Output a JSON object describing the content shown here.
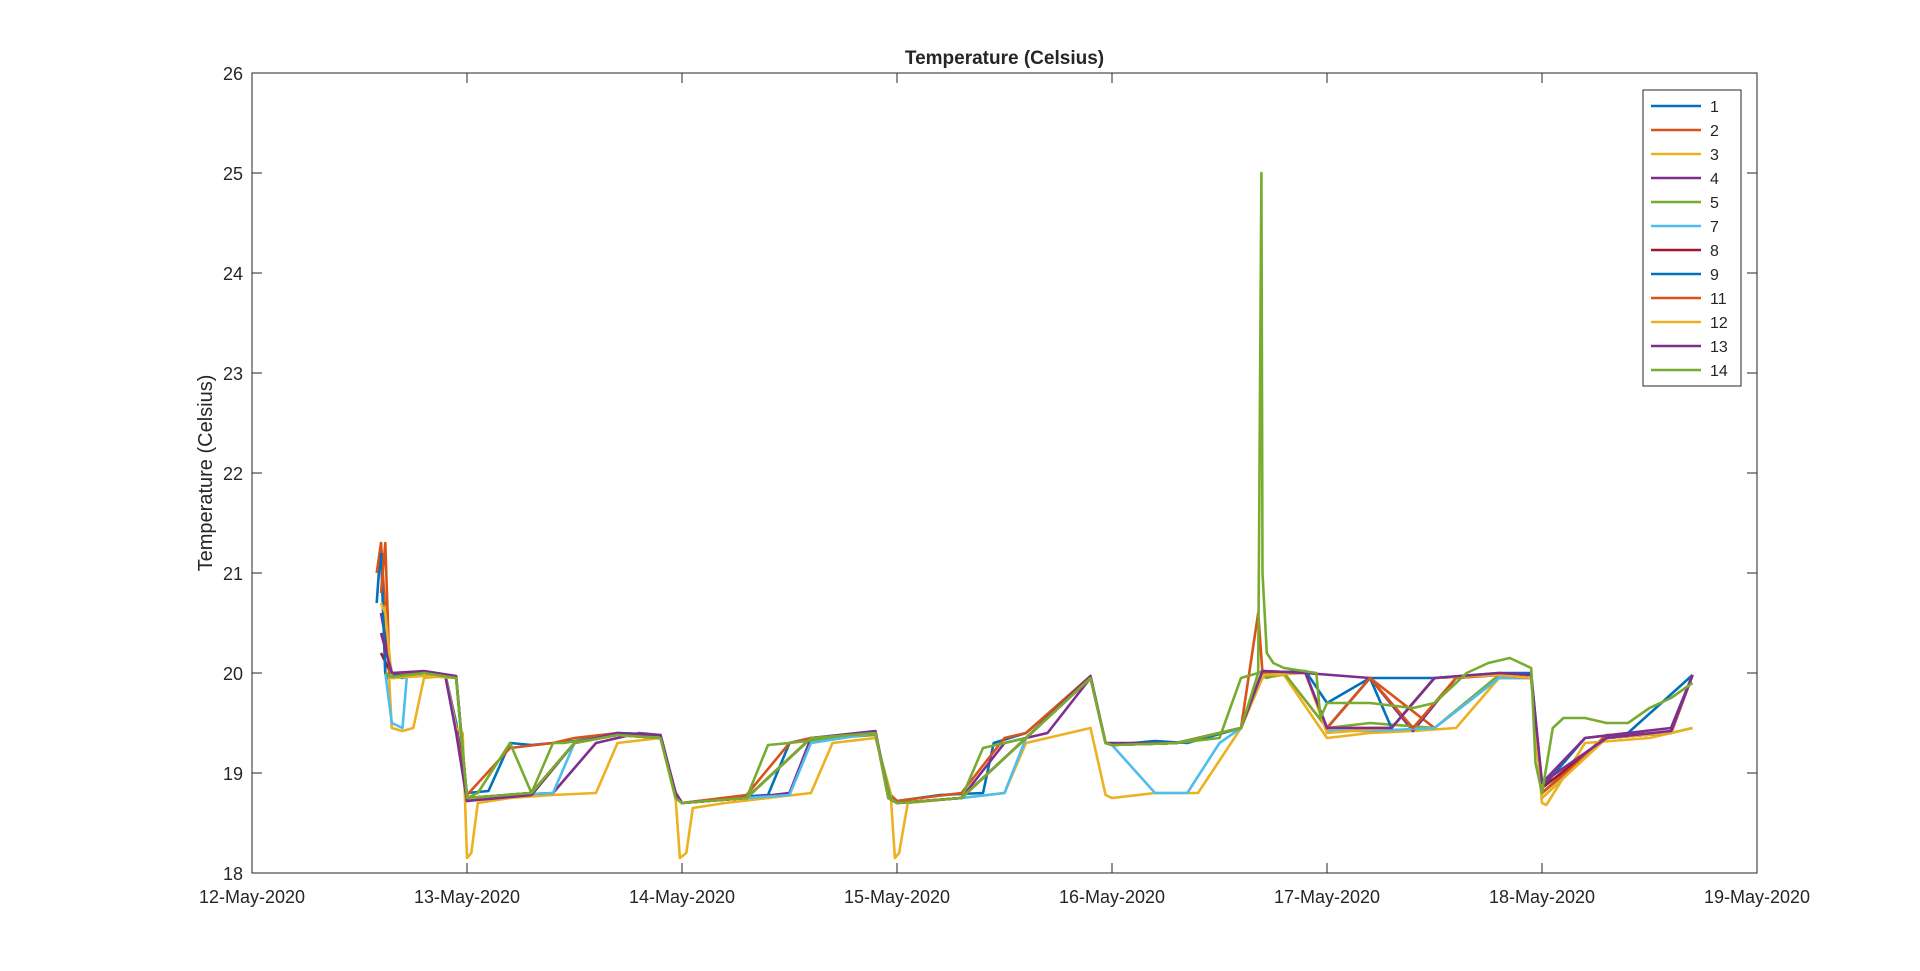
{
  "chart_data": {
    "type": "line",
    "title": "Temperature (Celsius)",
    "xlabel": "",
    "ylabel": "Temperature (Celsius)",
    "xlim": [
      "2020-05-12",
      "2020-05-19"
    ],
    "ylim": [
      18,
      26
    ],
    "xticks": [
      "12-May-2020",
      "13-May-2020",
      "14-May-2020",
      "15-May-2020",
      "16-May-2020",
      "17-May-2020",
      "18-May-2020",
      "19-May-2020"
    ],
    "yticks": [
      18,
      19,
      20,
      21,
      22,
      23,
      24,
      25,
      26
    ],
    "grid": false,
    "legend_position": "top-right",
    "series": [
      {
        "name": "1",
        "color": "#0072BD",
        "x_days": [
          12.58,
          12.6,
          12.62,
          12.63,
          12.65,
          12.7,
          12.8,
          12.9,
          12.95,
          13.0,
          13.1,
          13.2,
          13.3,
          13.5,
          13.7,
          13.9,
          13.97,
          14.0,
          14.2,
          14.4,
          14.5,
          14.6,
          14.9,
          14.96,
          15.0,
          15.2,
          15.4,
          15.45,
          15.6,
          15.9,
          15.97,
          16.0,
          16.2,
          16.35,
          16.6,
          16.7,
          16.9,
          17.0,
          17.2,
          17.5,
          17.8,
          17.95,
          18.0,
          18.2,
          18.4,
          18.7
        ],
        "y": [
          20.7,
          21.3,
          20.0,
          19.95,
          19.97,
          19.95,
          20.0,
          19.98,
          19.5,
          18.8,
          18.82,
          19.3,
          19.28,
          19.32,
          19.4,
          19.38,
          18.75,
          18.7,
          18.75,
          18.78,
          19.3,
          19.35,
          19.4,
          18.8,
          18.72,
          18.78,
          18.8,
          19.3,
          19.4,
          19.96,
          19.3,
          19.28,
          19.32,
          19.3,
          19.45,
          20.0,
          20.02,
          19.7,
          19.95,
          19.95,
          20.0,
          20.0,
          18.85,
          19.35,
          19.4,
          19.98
        ]
      },
      {
        "name": "2",
        "color": "#D95319",
        "x_days": [
          12.58,
          12.6,
          12.62,
          12.64,
          12.66,
          12.7,
          12.8,
          12.9,
          12.95,
          13.0,
          13.2,
          13.4,
          13.5,
          13.7,
          13.9,
          13.97,
          14.0,
          14.3,
          14.5,
          14.6,
          14.9,
          14.96,
          15.0,
          15.3,
          15.5,
          15.6,
          15.9,
          15.97,
          16.0,
          16.3,
          16.6,
          16.68,
          16.7,
          16.8,
          17.0,
          17.2,
          17.5,
          17.8,
          17.95,
          18.0,
          18.3,
          18.6,
          18.7
        ],
        "y": [
          21.0,
          21.3,
          20.6,
          19.98,
          19.95,
          19.96,
          20.0,
          19.96,
          19.45,
          18.78,
          19.25,
          19.3,
          19.35,
          19.4,
          19.35,
          18.8,
          18.7,
          18.78,
          19.3,
          19.35,
          19.4,
          18.8,
          18.72,
          18.8,
          19.35,
          19.4,
          19.97,
          19.3,
          19.28,
          19.3,
          19.45,
          20.6,
          20.0,
          20.0,
          19.45,
          19.95,
          19.45,
          19.95,
          19.95,
          18.8,
          19.38,
          19.4,
          19.98
        ]
      },
      {
        "name": "3",
        "color": "#EDB120",
        "x_days": [
          12.6,
          12.62,
          12.65,
          12.7,
          12.75,
          12.8,
          12.9,
          12.95,
          12.98,
          13.0,
          13.02,
          13.05,
          13.2,
          13.4,
          13.6,
          13.7,
          13.9,
          13.97,
          13.99,
          14.02,
          14.05,
          14.2,
          14.4,
          14.6,
          14.7,
          14.9,
          14.97,
          14.99,
          15.01,
          15.05,
          15.3,
          15.5,
          15.6,
          15.8,
          15.9,
          15.97,
          16.0,
          16.2,
          16.4,
          16.6,
          16.7,
          16.8,
          17.0,
          17.2,
          17.4,
          17.6,
          17.8,
          17.95,
          18.0,
          18.02,
          18.2,
          18.5,
          18.7
        ],
        "y": [
          20.7,
          20.65,
          19.45,
          19.42,
          19.45,
          19.95,
          19.97,
          19.45,
          19.4,
          18.15,
          18.2,
          18.7,
          18.75,
          18.78,
          18.8,
          19.3,
          19.35,
          18.75,
          18.15,
          18.2,
          18.65,
          18.7,
          18.75,
          18.8,
          19.3,
          19.35,
          18.8,
          18.15,
          18.2,
          18.7,
          18.75,
          18.8,
          19.3,
          19.4,
          19.45,
          18.78,
          18.75,
          18.8,
          18.8,
          19.45,
          19.95,
          19.98,
          19.35,
          19.4,
          19.42,
          19.45,
          19.95,
          19.95,
          18.7,
          18.68,
          19.3,
          19.35,
          19.45
        ]
      },
      {
        "name": "4",
        "color": "#7E2F8E",
        "x_days": [
          12.6,
          12.65,
          12.7,
          12.8,
          12.9,
          12.95,
          13.0,
          13.2,
          13.4,
          13.6,
          13.7,
          13.8,
          13.9,
          13.97,
          14.0,
          14.3,
          14.5,
          14.6,
          14.9,
          14.96,
          15.0,
          15.3,
          15.5,
          15.7,
          15.9,
          15.97,
          16.0,
          16.3,
          16.6,
          16.7,
          16.9,
          17.2,
          17.4,
          17.6,
          17.8,
          17.95,
          18.0,
          18.2,
          18.4,
          18.6,
          18.7
        ],
        "y": [
          20.6,
          20.0,
          19.98,
          20.0,
          19.96,
          19.4,
          18.72,
          18.78,
          18.8,
          19.3,
          19.35,
          19.4,
          19.38,
          18.8,
          18.7,
          18.75,
          18.8,
          19.35,
          19.4,
          18.75,
          18.7,
          18.75,
          19.3,
          19.4,
          19.95,
          19.3,
          19.28,
          19.3,
          19.45,
          20.02,
          20.0,
          19.95,
          19.42,
          19.95,
          19.98,
          19.95,
          18.9,
          19.35,
          19.4,
          19.45,
          19.98
        ]
      },
      {
        "name": "5",
        "color": "#77AC30",
        "x_days": [
          12.62,
          12.65,
          12.8,
          12.95,
          13.0,
          13.05,
          13.2,
          13.3,
          13.4,
          13.45,
          13.6,
          13.7,
          13.9,
          13.97,
          14.0,
          14.3,
          14.4,
          14.5,
          14.7,
          14.9,
          14.97,
          15.0,
          15.3,
          15.4,
          15.6,
          15.9,
          15.97,
          16.0,
          16.3,
          16.5,
          16.6,
          16.68,
          16.7,
          16.72,
          16.8,
          17.0,
          17.2,
          17.5,
          17.8,
          17.95,
          18.0,
          18.3,
          18.6,
          18.7
        ],
        "y": [
          20.0,
          19.95,
          20.0,
          19.95,
          18.75,
          18.8,
          19.3,
          18.8,
          19.3,
          19.3,
          19.35,
          19.38,
          19.35,
          18.75,
          18.7,
          18.75,
          19.28,
          19.3,
          19.35,
          19.38,
          18.75,
          18.7,
          18.75,
          19.25,
          19.35,
          19.95,
          19.3,
          19.28,
          19.3,
          19.35,
          19.95,
          20.0,
          20.02,
          19.95,
          20.0,
          19.45,
          19.5,
          19.45,
          19.98,
          19.95,
          18.75,
          19.35,
          19.4,
          19.98
        ]
      },
      {
        "name": "7",
        "color": "#4DBEEE",
        "x_days": [
          12.62,
          12.65,
          12.7,
          12.72,
          12.8,
          12.95,
          13.0,
          13.2,
          13.4,
          13.5,
          13.6,
          13.7,
          13.9,
          13.97,
          14.0,
          14.3,
          14.5,
          14.6,
          14.9,
          14.96,
          15.0,
          15.3,
          15.5,
          15.6,
          15.9,
          15.97,
          16.0,
          16.2,
          16.35,
          16.5,
          16.6,
          16.7,
          16.9,
          17.0,
          17.2,
          17.5,
          17.8,
          17.95,
          18.0,
          18.3,
          18.6,
          18.7
        ],
        "y": [
          20.0,
          19.5,
          19.45,
          19.96,
          20.0,
          19.95,
          18.75,
          18.78,
          18.8,
          19.3,
          19.35,
          19.4,
          19.38,
          18.75,
          18.7,
          18.75,
          18.78,
          19.3,
          19.4,
          18.75,
          18.7,
          18.75,
          18.8,
          19.35,
          19.95,
          19.3,
          19.28,
          18.8,
          18.8,
          19.3,
          19.45,
          19.98,
          20.0,
          19.42,
          19.42,
          19.45,
          19.95,
          19.95,
          18.8,
          19.35,
          19.4,
          19.45
        ]
      },
      {
        "name": "8",
        "color": "#A2142F",
        "x_days": [
          12.6,
          12.65,
          12.8,
          12.95,
          13.0,
          13.3,
          13.5,
          13.7,
          13.9,
          13.97,
          14.0,
          14.3,
          14.6,
          14.9,
          14.96,
          15.0,
          15.3,
          15.6,
          15.9,
          15.97,
          16.0,
          16.3,
          16.6,
          16.7,
          16.9,
          17.0,
          17.3,
          17.5,
          17.8,
          17.95,
          18.0,
          18.3,
          18.6,
          18.7
        ],
        "y": [
          20.2,
          19.98,
          20.0,
          19.95,
          18.75,
          18.8,
          19.3,
          19.38,
          19.35,
          18.8,
          18.7,
          18.75,
          19.35,
          19.4,
          18.75,
          18.7,
          18.75,
          19.35,
          19.95,
          19.3,
          19.28,
          19.3,
          19.45,
          20.0,
          20.0,
          19.45,
          19.45,
          19.95,
          19.98,
          19.95,
          18.85,
          19.35,
          19.4,
          19.98
        ]
      },
      {
        "name": "9",
        "color": "#0072BD",
        "x_days": [
          12.6,
          12.62,
          12.65,
          12.8,
          12.95,
          13.0,
          13.3,
          13.5,
          13.7,
          13.9,
          13.97,
          14.0,
          14.3,
          14.6,
          14.9,
          14.96,
          15.0,
          15.3,
          15.6,
          15.9,
          15.97,
          16.0,
          16.3,
          16.6,
          16.7,
          16.9,
          17.0,
          17.2,
          17.3,
          17.5,
          17.8,
          17.95,
          18.0,
          18.3,
          18.6,
          18.7
        ],
        "y": [
          21.2,
          20.0,
          19.97,
          20.0,
          19.95,
          18.75,
          18.8,
          19.3,
          19.38,
          19.35,
          18.8,
          18.7,
          18.75,
          19.35,
          19.4,
          18.75,
          18.7,
          18.75,
          19.35,
          19.95,
          19.3,
          19.28,
          19.3,
          19.45,
          20.0,
          20.0,
          19.45,
          19.95,
          19.45,
          19.95,
          19.98,
          19.95,
          18.8,
          19.35,
          19.4,
          19.98
        ]
      },
      {
        "name": "11",
        "color": "#D95319",
        "x_days": [
          12.6,
          12.62,
          12.64,
          12.8,
          12.95,
          13.0,
          13.3,
          13.5,
          13.7,
          13.9,
          13.97,
          14.0,
          14.3,
          14.6,
          14.9,
          14.96,
          15.0,
          15.3,
          15.6,
          15.9,
          15.97,
          16.0,
          16.3,
          16.6,
          16.7,
          16.9,
          17.0,
          17.2,
          17.4,
          17.6,
          17.8,
          17.95,
          18.0,
          18.3,
          18.6,
          18.7
        ],
        "y": [
          20.8,
          21.3,
          20.0,
          20.0,
          19.95,
          18.75,
          18.8,
          19.3,
          19.38,
          19.35,
          18.8,
          18.7,
          18.75,
          19.35,
          19.4,
          18.75,
          18.7,
          18.75,
          19.35,
          19.95,
          19.3,
          19.28,
          19.3,
          19.45,
          20.0,
          20.0,
          19.45,
          19.95,
          19.45,
          19.95,
          19.98,
          19.95,
          18.8,
          19.35,
          19.4,
          19.98
        ]
      },
      {
        "name": "12",
        "color": "#EDB120",
        "x_days": [
          12.6,
          12.62,
          12.65,
          12.8,
          12.95,
          13.0,
          13.3,
          13.5,
          13.7,
          13.9,
          13.97,
          14.0,
          14.3,
          14.6,
          14.9,
          14.96,
          15.0,
          15.3,
          15.6,
          15.9,
          15.97,
          16.0,
          16.3,
          16.6,
          16.7,
          16.9,
          17.0,
          17.3,
          17.5,
          17.8,
          17.95,
          18.0,
          18.3,
          18.6,
          18.7
        ],
        "y": [
          20.7,
          20.6,
          19.95,
          19.97,
          19.95,
          18.75,
          18.78,
          19.3,
          19.38,
          19.35,
          18.75,
          18.7,
          18.75,
          19.35,
          19.4,
          18.75,
          18.7,
          18.75,
          19.35,
          19.95,
          19.3,
          19.28,
          19.3,
          19.45,
          19.98,
          20.0,
          19.4,
          19.45,
          19.95,
          19.98,
          19.95,
          18.75,
          19.35,
          19.4,
          19.45
        ]
      },
      {
        "name": "13",
        "color": "#7E2F8E",
        "x_days": [
          12.6,
          12.65,
          12.8,
          12.95,
          13.0,
          13.3,
          13.5,
          13.7,
          13.9,
          13.97,
          14.0,
          14.3,
          14.6,
          14.9,
          14.96,
          15.0,
          15.3,
          15.6,
          15.9,
          15.97,
          16.0,
          16.3,
          16.6,
          16.7,
          16.9,
          17.0,
          17.3,
          17.5,
          17.8,
          17.95,
          18.0,
          18.3,
          18.6,
          18.7
        ],
        "y": [
          20.4,
          20.0,
          20.02,
          19.97,
          18.72,
          18.78,
          19.3,
          19.4,
          19.38,
          18.8,
          18.7,
          18.75,
          19.35,
          19.42,
          18.75,
          18.7,
          18.75,
          19.35,
          19.97,
          19.3,
          19.3,
          19.3,
          19.45,
          20.02,
          20.0,
          19.45,
          19.45,
          19.95,
          20.0,
          19.98,
          18.9,
          19.35,
          19.42,
          19.98
        ]
      },
      {
        "name": "14",
        "color": "#77AC30",
        "x_days": [
          12.62,
          12.65,
          12.8,
          12.95,
          13.0,
          13.3,
          13.5,
          13.7,
          13.9,
          13.97,
          14.0,
          14.3,
          14.6,
          14.9,
          14.96,
          15.0,
          15.3,
          15.6,
          15.9,
          15.97,
          16.0,
          16.3,
          16.6,
          16.68,
          16.695,
          16.7,
          16.72,
          16.75,
          16.8,
          16.95,
          16.97,
          17.0,
          17.1,
          17.2,
          17.4,
          17.5,
          17.65,
          17.75,
          17.85,
          17.9,
          17.95,
          17.97,
          18.0,
          18.05,
          18.1,
          18.2,
          18.3,
          18.4,
          18.5,
          18.6,
          18.7
        ],
        "y": [
          20.0,
          19.96,
          20.0,
          19.95,
          18.75,
          18.8,
          19.3,
          19.38,
          19.35,
          18.75,
          18.7,
          18.75,
          19.35,
          19.4,
          18.75,
          18.7,
          18.75,
          19.35,
          19.95,
          19.3,
          19.28,
          19.3,
          19.45,
          20.0,
          25.0,
          21.0,
          20.2,
          20.1,
          20.05,
          20.0,
          19.55,
          19.7,
          19.7,
          19.7,
          19.65,
          19.7,
          20.0,
          20.1,
          20.15,
          20.1,
          20.05,
          19.1,
          18.8,
          19.45,
          19.55,
          19.55,
          19.5,
          19.5,
          19.65,
          19.75,
          19.9
        ]
      }
    ]
  }
}
